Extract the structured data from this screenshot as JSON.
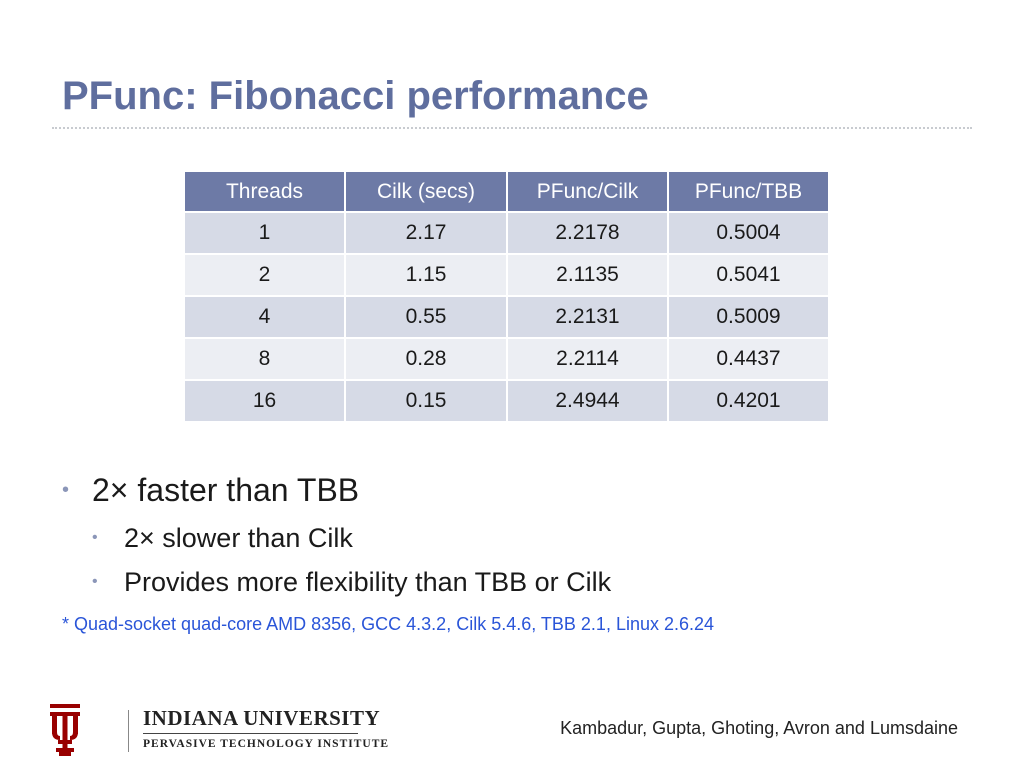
{
  "slide": {
    "title": "PFunc: Fibonacci performance"
  },
  "table": {
    "headers": [
      "Threads",
      "Cilk (secs)",
      "PFunc/Cilk",
      "PFunc/TBB"
    ],
    "rows": [
      [
        "1",
        "2.17",
        "2.2178",
        "0.5004"
      ],
      [
        "2",
        "1.15",
        "2.1135",
        "0.5041"
      ],
      [
        "4",
        "0.55",
        "2.2131",
        "0.5009"
      ],
      [
        "8",
        "0.28",
        "2.2114",
        "0.4437"
      ],
      [
        "16",
        "0.15",
        "2.4944",
        "0.4201"
      ]
    ]
  },
  "bullets": {
    "level1": "2×  faster than TBB",
    "sub": [
      "2×  slower than Cilk",
      "Provides more flexibility than TBB or Cilk"
    ],
    "footnote": "* Quad-socket quad-core AMD 8356, GCC 4.3.2, Cilk 5.4.6, TBB 2.1, Linux 2.6.24"
  },
  "logo": {
    "name": "INDIANA UNIVERSITY",
    "sub": "PERVASIVE TECHNOLOGY INSTITUTE",
    "icon": "iu-trident-icon",
    "color": "#990000"
  },
  "footer": {
    "authors": "Kambadur, Gupta, Ghoting, Avron and Lumsdaine"
  },
  "colors": {
    "title": "#5f6e9e",
    "header_bg": "#6d7aa6",
    "row_bg": "#d6dae6",
    "row_alt_bg": "#eceef3",
    "footnote": "#2a55d8"
  }
}
